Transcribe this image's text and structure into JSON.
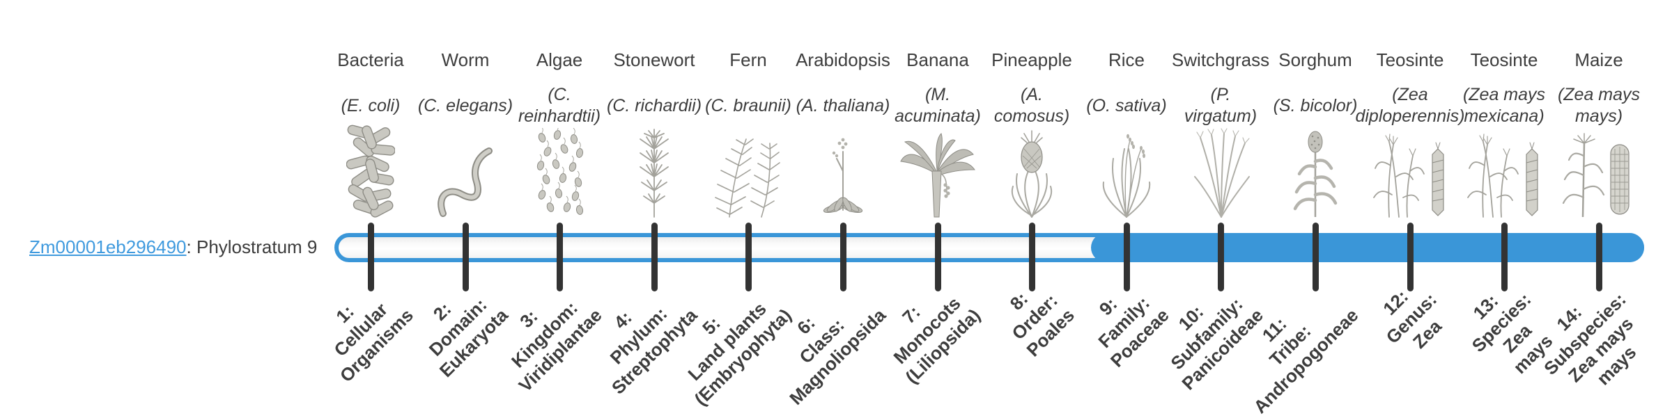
{
  "page": {
    "background": "#ffffff"
  },
  "gene": {
    "id": "Zm00001eb296490",
    "suffix": ": Phylostratum 9",
    "phylostratum": 9
  },
  "bar": {
    "fill_color": "#3a96d8",
    "track_border_color": "#3a96d8",
    "track_background": "#fafafa",
    "tick_color": "#333333",
    "filled_from_stratum": 9,
    "total_strata": 14
  },
  "strata": [
    {
      "index": 1,
      "organism": "Bacteria",
      "species_lines": [
        "(E. coli)"
      ],
      "tick_label_lines": [
        "1:",
        "Cellular",
        "Organisms"
      ],
      "icon": "bacteria-icon"
    },
    {
      "index": 2,
      "organism": "Worm",
      "species_lines": [
        "(C. elegans)"
      ],
      "tick_label_lines": [
        "2:",
        "Domain:",
        "Eukaryota"
      ],
      "icon": "worm-icon"
    },
    {
      "index": 3,
      "organism": "Algae",
      "species_lines": [
        "(C.",
        "reinhardtii)"
      ],
      "tick_label_lines": [
        "3:",
        "Kingdom:",
        "Viridiplantae"
      ],
      "icon": "algae-icon"
    },
    {
      "index": 4,
      "organism": "Stonewort",
      "species_lines": [
        "(C. richardii)"
      ],
      "tick_label_lines": [
        "4:",
        "Phylum:",
        "Streptophyta"
      ],
      "icon": "stonewort-icon"
    },
    {
      "index": 5,
      "organism": "Fern",
      "species_lines": [
        "(C. braunii)"
      ],
      "tick_label_lines": [
        "5:",
        "Land plants",
        "(Embryophyta)"
      ],
      "icon": "fern-icon"
    },
    {
      "index": 6,
      "organism": "Arabidopsis",
      "species_lines": [
        "(A. thaliana)"
      ],
      "tick_label_lines": [
        "6:",
        "Class:",
        "Magnoliopsida"
      ],
      "icon": "arabidopsis-icon"
    },
    {
      "index": 7,
      "organism": "Banana",
      "species_lines": [
        "(M.",
        "acuminata)"
      ],
      "tick_label_lines": [
        "7:",
        "Monocots",
        "(Liliopsida)"
      ],
      "icon": "banana-icon"
    },
    {
      "index": 8,
      "organism": "Pineapple",
      "species_lines": [
        "(A.",
        "comosus)"
      ],
      "tick_label_lines": [
        "8:",
        "Order:",
        "Poales"
      ],
      "icon": "pineapple-icon"
    },
    {
      "index": 9,
      "organism": "Rice",
      "species_lines": [
        "(O. sativa)"
      ],
      "tick_label_lines": [
        "9:",
        "Family:",
        "Poaceae"
      ],
      "icon": "rice-icon"
    },
    {
      "index": 10,
      "organism": "Switchgrass",
      "species_lines": [
        "(P.",
        "virgatum)"
      ],
      "tick_label_lines": [
        "10:",
        "Subfamily:",
        "Panicoideae"
      ],
      "icon": "switchgrass-icon"
    },
    {
      "index": 11,
      "organism": "Sorghum",
      "species_lines": [
        "(S. bicolor)"
      ],
      "tick_label_lines": [
        "11:",
        "Tribe:",
        "Andropogoneae"
      ],
      "icon": "sorghum-icon"
    },
    {
      "index": 12,
      "organism": "Teosinte",
      "species_lines": [
        "(Zea",
        "diploperennis)"
      ],
      "tick_label_lines": [
        "12:",
        "Genus:",
        "Zea"
      ],
      "icon": "teosinte-icon"
    },
    {
      "index": 13,
      "organism": "Teosinte",
      "species_lines": [
        "(Zea mays",
        "mexicana)"
      ],
      "tick_label_lines": [
        "13:",
        "Species:",
        "Zea",
        "mays"
      ],
      "icon": "teosinte-icon"
    },
    {
      "index": 14,
      "organism": "Maize",
      "species_lines": [
        "(Zea mays",
        "mays)"
      ],
      "tick_label_lines": [
        "14:",
        "Subspecies:",
        "Zea mays",
        "mays"
      ],
      "icon": "maize-icon"
    }
  ]
}
